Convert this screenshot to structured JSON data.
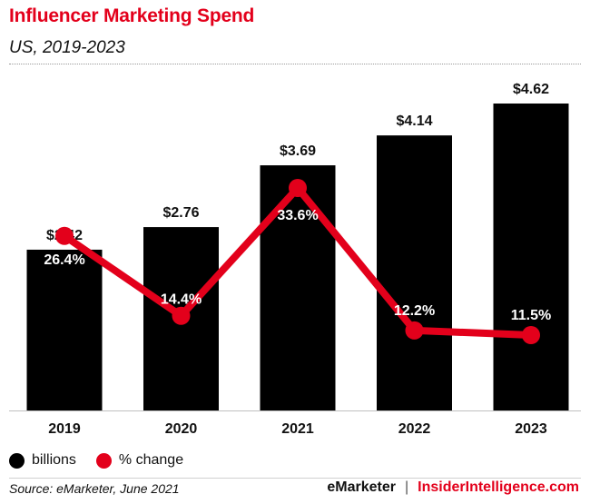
{
  "header": {
    "title": "Influencer Marketing Spend",
    "subtitle": "US, 2019-2023"
  },
  "legend": {
    "bars_label": "billions",
    "line_label": "% change",
    "bar_color": "#000000",
    "line_color": "#e3001b"
  },
  "footer": {
    "source": "Source: eMarketer, June 2021",
    "brand_left": "eMarketer",
    "separator": "|",
    "brand_right": "InsiderIntelligence.com"
  },
  "chart_data": {
    "type": "bar",
    "title": "Influencer Marketing Spend",
    "subtitle": "US, 2019-2023",
    "categories": [
      "2019",
      "2020",
      "2021",
      "2022",
      "2023"
    ],
    "series": [
      {
        "name": "billions",
        "type": "bar",
        "values": [
          2.42,
          2.76,
          3.69,
          4.14,
          4.62
        ],
        "labels": [
          "$2.42",
          "$2.76",
          "$3.69",
          "$4.14",
          "$4.62"
        ],
        "color": "#000000"
      },
      {
        "name": "% change",
        "type": "line",
        "values": [
          26.4,
          14.4,
          33.6,
          12.2,
          11.5
        ],
        "labels": [
          "26.4%",
          "14.4%",
          "33.6%",
          "12.2%",
          "11.5%"
        ],
        "color": "#e3001b"
      }
    ],
    "ylim": [
      0,
      4.62
    ],
    "grid": false,
    "legend": "bottom-left"
  }
}
